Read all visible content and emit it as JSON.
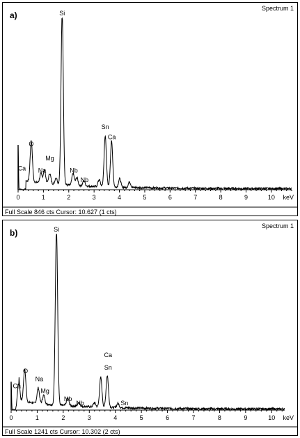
{
  "chart_data": [
    {
      "type": "line",
      "panel_label": "a)",
      "spectrum_title": "Spectrum 1",
      "xlabel": "keV",
      "xlim": [
        0,
        10.8
      ],
      "ylim": [
        0,
        846
      ],
      "x_ticks": [
        "0",
        "1",
        "2",
        "3",
        "4",
        "5",
        "6",
        "7",
        "8",
        "9",
        "10"
      ],
      "status_line": "Full Scale 846 cts Cursor: 10.627  (1 cts)",
      "peaks": [
        {
          "x": 0.0,
          "height": 220
        },
        {
          "x": 0.52,
          "height": 200
        },
        {
          "x": 0.9,
          "height": 45
        },
        {
          "x": 1.04,
          "height": 65
        },
        {
          "x": 1.25,
          "height": 50
        },
        {
          "x": 1.5,
          "height": 32
        },
        {
          "x": 1.74,
          "height": 846
        },
        {
          "x": 2.17,
          "height": 60
        },
        {
          "x": 2.32,
          "height": 40
        },
        {
          "x": 2.6,
          "height": 25
        },
        {
          "x": 3.2,
          "height": 35
        },
        {
          "x": 3.44,
          "height": 250
        },
        {
          "x": 3.69,
          "height": 225
        },
        {
          "x": 4.01,
          "height": 42
        },
        {
          "x": 4.4,
          "height": 28
        }
      ],
      "labels": [
        {
          "text": "Si",
          "x": 1.74,
          "y": 860
        },
        {
          "text": "O",
          "x": 0.52,
          "y": 215
        },
        {
          "text": "Ca",
          "x": 0.15,
          "y": 95
        },
        {
          "text": "Na",
          "x": 0.95,
          "y": 85
        },
        {
          "text": "Mg",
          "x": 1.25,
          "y": 145
        },
        {
          "text": "Nb",
          "x": 2.2,
          "y": 85
        },
        {
          "text": "Nb",
          "x": 2.62,
          "y": 38
        },
        {
          "text": "Sn",
          "x": 3.44,
          "y": 300
        },
        {
          "text": "Ca",
          "x": 3.7,
          "y": 250
        }
      ]
    },
    {
      "type": "line",
      "panel_label": "b)",
      "spectrum_title": "Spectrum 1",
      "xlabel": "keV",
      "xlim": [
        0,
        10.5
      ],
      "ylim": [
        0,
        1241
      ],
      "x_ticks": [
        "0",
        "1",
        "2",
        "3",
        "4",
        "5",
        "6",
        "7",
        "8",
        "9",
        "10"
      ],
      "status_line": "Full Scale 1241 cts Cursor: 10.302  (2 cts)",
      "peaks": [
        {
          "x": 0.0,
          "height": 200
        },
        {
          "x": 0.28,
          "height": 185
        },
        {
          "x": 0.52,
          "height": 230
        },
        {
          "x": 1.04,
          "height": 110
        },
        {
          "x": 1.25,
          "height": 62
        },
        {
          "x": 1.74,
          "height": 1241
        },
        {
          "x": 2.17,
          "height": 55
        },
        {
          "x": 2.6,
          "height": 28
        },
        {
          "x": 3.2,
          "height": 30
        },
        {
          "x": 3.44,
          "height": 210
        },
        {
          "x": 3.69,
          "height": 225
        },
        {
          "x": 4.1,
          "height": 30
        }
      ],
      "labels": [
        {
          "text": "Si",
          "x": 1.74,
          "y": 1260
        },
        {
          "text": "O",
          "x": 0.55,
          "y": 260
        },
        {
          "text": "Ca",
          "x": 0.22,
          "y": 155
        },
        {
          "text": "Na",
          "x": 1.08,
          "y": 205
        },
        {
          "text": "Mg",
          "x": 1.3,
          "y": 120
        },
        {
          "text": "Nb",
          "x": 2.18,
          "y": 65
        },
        {
          "text": "Nb",
          "x": 2.65,
          "y": 35
        },
        {
          "text": "Ca",
          "x": 3.72,
          "y": 375
        },
        {
          "text": "Sn",
          "x": 3.72,
          "y": 285
        },
        {
          "text": "Sn",
          "x": 4.35,
          "y": 35
        }
      ]
    }
  ]
}
